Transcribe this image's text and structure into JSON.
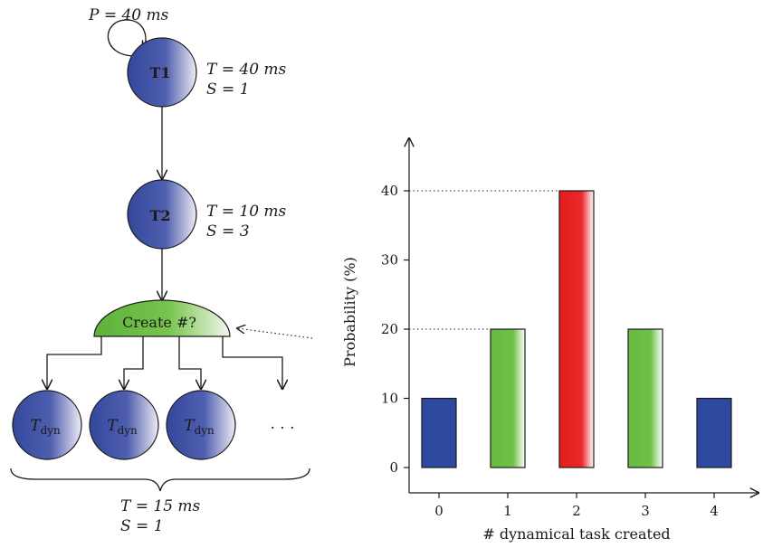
{
  "graph": {
    "t1": {
      "label": "T1",
      "period": "P = 40 ms",
      "time": "T = 40 ms",
      "s": "S = 1"
    },
    "t2": {
      "label": "T2",
      "time": "T = 10 ms",
      "s": "S = 3"
    },
    "create_node": {
      "label": "Create #?"
    },
    "tdyn": {
      "label_main": "T",
      "label_sub": "dyn",
      "ellipsis": ". . .",
      "time": "T = 15 ms",
      "s": "S = 1"
    }
  },
  "chart_data": {
    "type": "bar",
    "categories": [
      "0",
      "1",
      "2",
      "3",
      "4"
    ],
    "values": [
      10,
      20,
      40,
      20,
      10
    ],
    "bar_colors": [
      "#2e4a9e",
      "#6cbf43",
      "#e51c1c",
      "#6cbf43",
      "#2e4a9e"
    ],
    "xlabel": "# dynamical task created",
    "ylabel": "Probability (%)",
    "yticks": [
      0,
      10,
      20,
      30,
      40
    ],
    "ylim": [
      0,
      46
    ],
    "reference_lines": [
      20,
      40
    ],
    "grid": false
  }
}
